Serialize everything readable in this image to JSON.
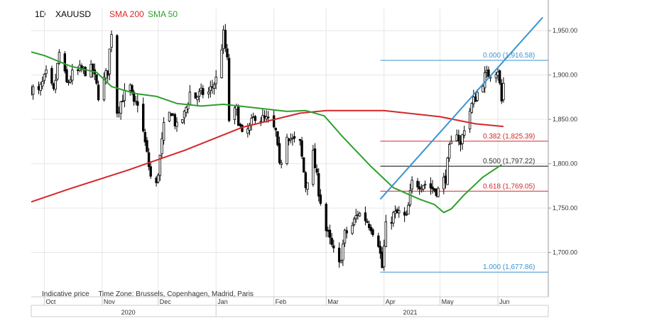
{
  "header": {
    "timeframe": "1D",
    "symbol": "XAUUSD",
    "indicators": [
      {
        "label": "SMA 200",
        "color": "#d62728"
      },
      {
        "label": "SMA 50",
        "color": "#2ca02c"
      }
    ]
  },
  "footer": {
    "indicative": "Indicative price",
    "timezone": "Time Zone: Brussels, Copenhagen, Madrid, Paris"
  },
  "colors": {
    "bull": "#ffffff",
    "bear": "#000000",
    "wick": "#000000",
    "sma200": "#d62728",
    "sma50": "#2ca02c",
    "trend": "#3a94d0",
    "fib_blue": "#3a94d0",
    "fib_red": "#d62728",
    "fib_black": "#333333",
    "grid": "#e6e6e6",
    "axis": "#999999"
  },
  "chart_data": {
    "type": "candlestick",
    "title": "",
    "ylim": [
      1650,
      1975
    ],
    "yticks": [
      1700,
      1750,
      1800,
      1850,
      1900,
      1950
    ],
    "ytick_labels": [
      "1,700.00",
      "1,750.00",
      "1,800.00",
      "1,850.00",
      "1,900.00",
      "1,950.00"
    ],
    "xlim": [
      "2020-09-24",
      "2021-06-28"
    ],
    "month_ticks": [
      {
        "date": "2020-10-01",
        "label": "Oct"
      },
      {
        "date": "2020-11-01",
        "label": "Nov"
      },
      {
        "date": "2020-12-01",
        "label": "Dec"
      },
      {
        "date": "2021-01-01",
        "label": "Jan"
      },
      {
        "date": "2021-02-01",
        "label": "Feb"
      },
      {
        "date": "2021-03-01",
        "label": "Mar"
      },
      {
        "date": "2021-04-01",
        "label": "Apr"
      },
      {
        "date": "2021-05-01",
        "label": "May"
      },
      {
        "date": "2021-06-01",
        "label": "Jun"
      }
    ],
    "year_ticks": [
      {
        "date": "2020-11-15",
        "label": "2020"
      },
      {
        "date": "2021-04-15",
        "label": "2021"
      }
    ],
    "year_dividers": [
      "2020-09-24",
      "2021-01-01",
      "2021-06-28"
    ],
    "price_path": [
      [
        "2020-09-24",
        1885
      ],
      [
        "2020-09-28",
        1880
      ],
      [
        "2020-10-02",
        1900
      ],
      [
        "2020-10-06",
        1880
      ],
      [
        "2020-10-09",
        1925
      ],
      [
        "2020-10-13",
        1890
      ],
      [
        "2020-10-16",
        1900
      ],
      [
        "2020-10-20",
        1905
      ],
      [
        "2020-10-23",
        1905
      ],
      [
        "2020-10-27",
        1905
      ],
      [
        "2020-10-30",
        1878
      ],
      [
        "2020-11-04",
        1905
      ],
      [
        "2020-11-06",
        1950
      ],
      [
        "2020-11-09",
        1860
      ],
      [
        "2020-11-12",
        1875
      ],
      [
        "2020-11-16",
        1885
      ],
      [
        "2020-11-18",
        1865
      ],
      [
        "2020-11-20",
        1870
      ],
      [
        "2020-11-23",
        1835
      ],
      [
        "2020-11-27",
        1785
      ],
      [
        "2020-11-30",
        1775
      ],
      [
        "2020-12-04",
        1840
      ],
      [
        "2020-12-08",
        1860
      ],
      [
        "2020-12-11",
        1840
      ],
      [
        "2020-12-15",
        1855
      ],
      [
        "2020-12-18",
        1880
      ],
      [
        "2020-12-21",
        1875
      ],
      [
        "2020-12-25",
        1880
      ],
      [
        "2020-12-28",
        1880
      ],
      [
        "2021-01-01",
        1895
      ],
      [
        "2021-01-05",
        1945
      ],
      [
        "2021-01-07",
        1915
      ],
      [
        "2021-01-08",
        1850
      ],
      [
        "2021-01-12",
        1860
      ],
      [
        "2021-01-15",
        1830
      ],
      [
        "2021-01-19",
        1840
      ],
      [
        "2021-01-22",
        1855
      ],
      [
        "2021-01-26",
        1850
      ],
      [
        "2021-01-29",
        1848
      ],
      [
        "2021-02-02",
        1835
      ],
      [
        "2021-02-04",
        1795
      ],
      [
        "2021-02-08",
        1835
      ],
      [
        "2021-02-11",
        1826
      ],
      [
        "2021-02-15",
        1822
      ],
      [
        "2021-02-18",
        1775
      ],
      [
        "2021-02-22",
        1810
      ],
      [
        "2021-02-25",
        1770
      ],
      [
        "2021-03-01",
        1725
      ],
      [
        "2021-03-05",
        1700
      ],
      [
        "2021-03-08",
        1685
      ],
      [
        "2021-03-11",
        1720
      ],
      [
        "2021-03-15",
        1730
      ],
      [
        "2021-03-18",
        1745
      ],
      [
        "2021-03-22",
        1738
      ],
      [
        "2021-03-25",
        1730
      ],
      [
        "2021-03-29",
        1712
      ],
      [
        "2021-03-31",
        1683
      ],
      [
        "2021-04-02",
        1728
      ],
      [
        "2021-04-06",
        1742
      ],
      [
        "2021-04-09",
        1744
      ],
      [
        "2021-04-13",
        1738
      ],
      [
        "2021-04-16",
        1778
      ],
      [
        "2021-04-20",
        1778
      ],
      [
        "2021-04-23",
        1778
      ],
      [
        "2021-04-27",
        1772
      ],
      [
        "2021-04-30",
        1770
      ],
      [
        "2021-05-04",
        1785
      ],
      [
        "2021-05-06",
        1815
      ],
      [
        "2021-05-10",
        1838
      ],
      [
        "2021-05-12",
        1820
      ],
      [
        "2021-05-14",
        1842
      ],
      [
        "2021-05-18",
        1866
      ],
      [
        "2021-05-21",
        1880
      ],
      [
        "2021-05-25",
        1898
      ],
      [
        "2021-05-28",
        1903
      ],
      [
        "2021-06-01",
        1907
      ],
      [
        "2021-06-03",
        1870
      ],
      [
        "2021-06-04",
        1890
      ]
    ],
    "sma200": [
      [
        "2020-09-24",
        1757
      ],
      [
        "2020-10-15",
        1772
      ],
      [
        "2020-11-15",
        1793
      ],
      [
        "2020-12-15",
        1815
      ],
      [
        "2021-01-15",
        1841
      ],
      [
        "2021-02-15",
        1857
      ],
      [
        "2021-03-01",
        1860
      ],
      [
        "2021-04-01",
        1860
      ],
      [
        "2021-05-01",
        1853
      ],
      [
        "2021-05-20",
        1845
      ],
      [
        "2021-06-04",
        1842
      ]
    ],
    "sma50": [
      [
        "2020-09-24",
        1926
      ],
      [
        "2020-10-01",
        1922
      ],
      [
        "2020-10-15",
        1910
      ],
      [
        "2020-10-29",
        1903
      ],
      [
        "2020-11-06",
        1887
      ],
      [
        "2020-11-19",
        1879
      ],
      [
        "2020-11-30",
        1876
      ],
      [
        "2020-12-11",
        1868
      ],
      [
        "2020-12-24",
        1865
      ],
      [
        "2021-01-05",
        1867
      ],
      [
        "2021-01-22",
        1863
      ],
      [
        "2021-02-08",
        1859
      ],
      [
        "2021-02-18",
        1860
      ],
      [
        "2021-02-28",
        1854
      ],
      [
        "2021-03-10",
        1830
      ],
      [
        "2021-03-25",
        1797
      ],
      [
        "2021-04-06",
        1773
      ],
      [
        "2021-04-20",
        1760
      ],
      [
        "2021-04-28",
        1754
      ],
      [
        "2021-05-03",
        1745
      ],
      [
        "2021-05-07",
        1749
      ],
      [
        "2021-05-14",
        1765
      ],
      [
        "2021-05-24",
        1785
      ],
      [
        "2021-06-03",
        1799
      ]
    ],
    "trendline": {
      "x": [
        "2021-03-30",
        "2021-06-25"
      ],
      "y": [
        1760,
        1965
      ]
    },
    "fib_start": "2021-03-30",
    "fib_levels": [
      {
        "ratio": "0.000",
        "value": 1916.58,
        "label": "0.000 (1,916.58)",
        "style": "blue"
      },
      {
        "ratio": "0.382",
        "value": 1825.39,
        "label": "0.382 (1,825.39)",
        "style": "red"
      },
      {
        "ratio": "0.500",
        "value": 1797.22,
        "label": "0.500 (1,797.22)",
        "style": "black"
      },
      {
        "ratio": "0.618",
        "value": 1769.05,
        "label": "0.618 (1,769.05)",
        "style": "red"
      },
      {
        "ratio": "1.000",
        "value": 1677.86,
        "label": "1.000 (1,677.86)",
        "style": "blue"
      }
    ]
  }
}
